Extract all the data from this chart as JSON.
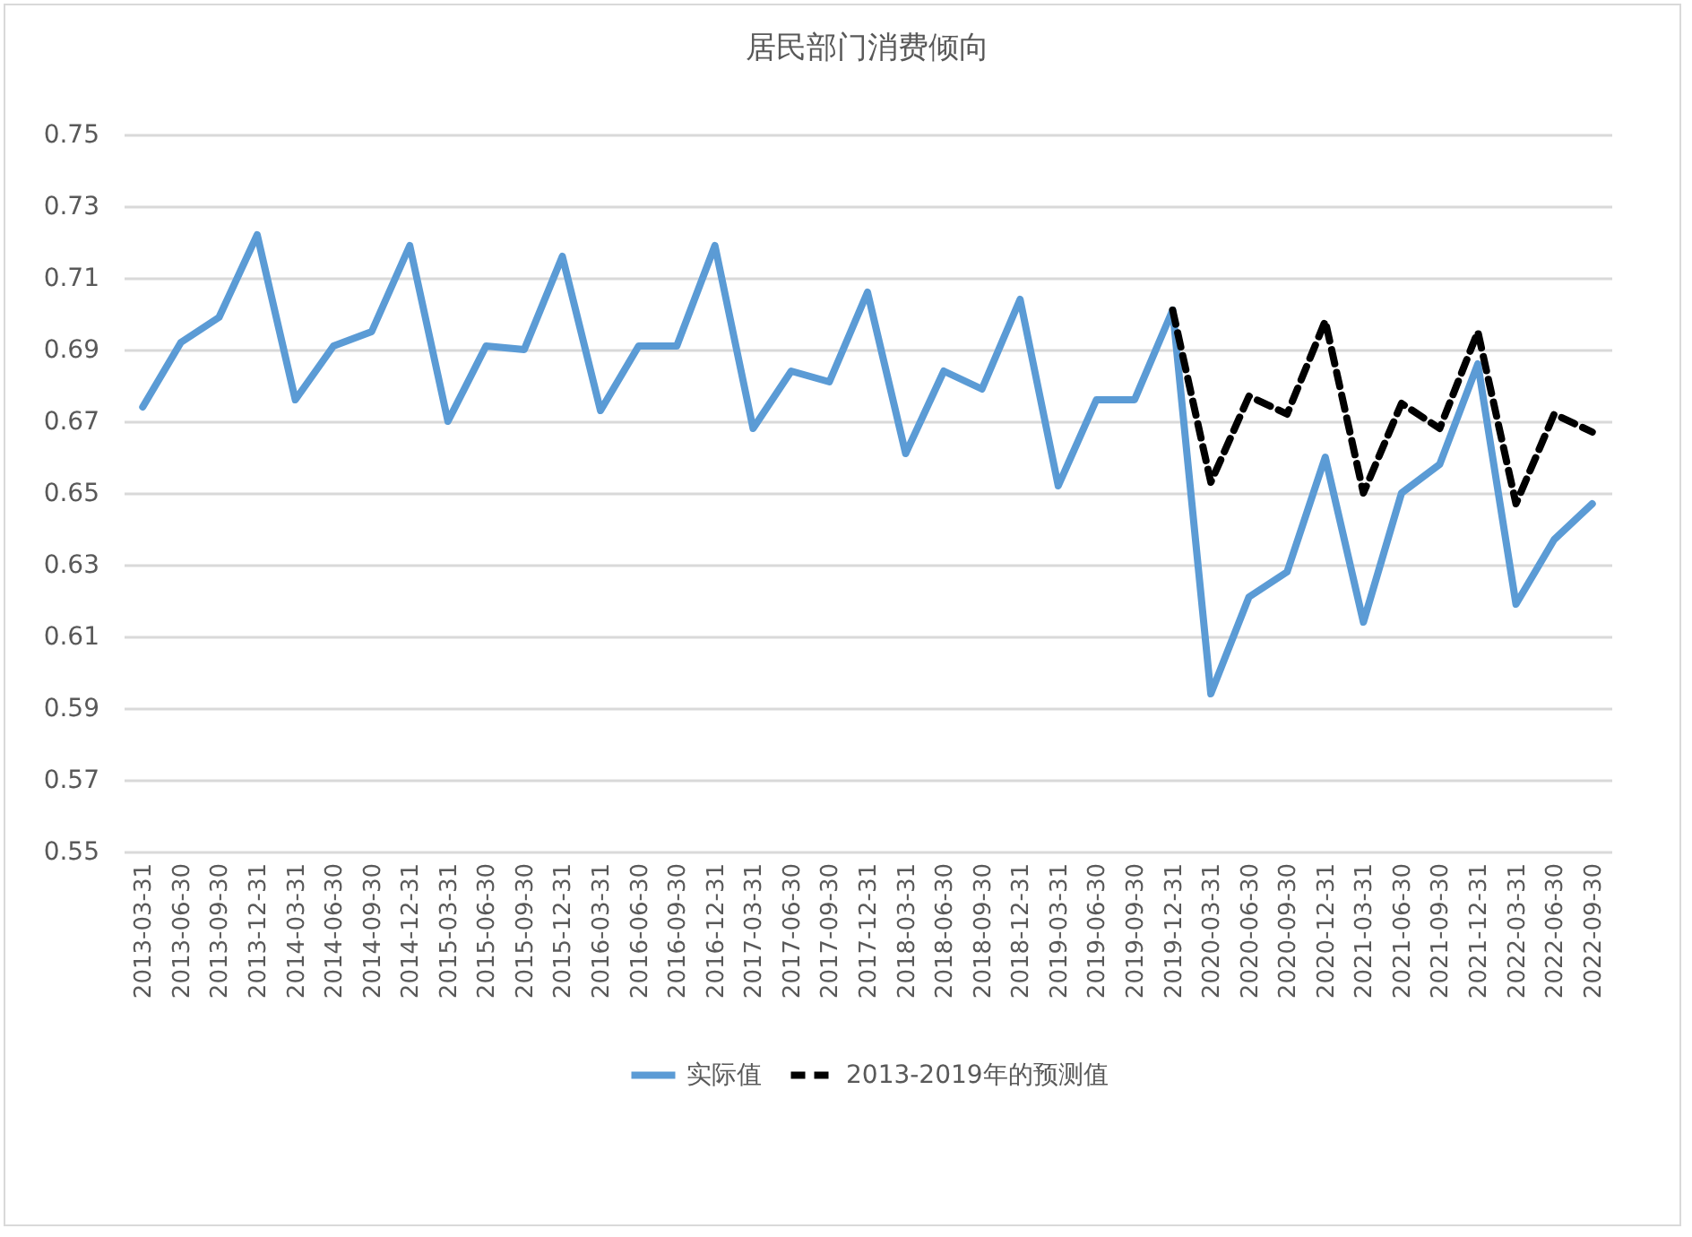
{
  "chart_data": {
    "type": "line",
    "title": "居民部门消费倾向",
    "categories": [
      "2013-03-31",
      "2013-06-30",
      "2013-09-30",
      "2013-12-31",
      "2014-03-31",
      "2014-06-30",
      "2014-09-30",
      "2014-12-31",
      "2015-03-31",
      "2015-06-30",
      "2015-09-30",
      "2015-12-31",
      "2016-03-31",
      "2016-06-30",
      "2016-09-30",
      "2016-12-31",
      "2017-03-31",
      "2017-06-30",
      "2017-09-30",
      "2017-12-31",
      "2018-03-31",
      "2018-06-30",
      "2018-09-30",
      "2018-12-31",
      "2019-03-31",
      "2019-06-30",
      "2019-09-30",
      "2019-12-31",
      "2020-03-31",
      "2020-06-30",
      "2020-09-30",
      "2020-12-31",
      "2021-03-31",
      "2021-06-30",
      "2021-09-30",
      "2021-12-31",
      "2022-03-31",
      "2022-06-30",
      "2022-09-30"
    ],
    "series": [
      {
        "name": "实际值",
        "color": "#5b9bd5",
        "line_style": "solid",
        "values": [
          0.674,
          0.692,
          0.699,
          0.722,
          0.676,
          0.691,
          0.695,
          0.719,
          0.67,
          0.691,
          0.69,
          0.716,
          0.673,
          0.691,
          0.691,
          0.719,
          0.668,
          0.684,
          0.681,
          0.706,
          0.661,
          0.684,
          0.679,
          0.704,
          0.652,
          0.676,
          0.676,
          0.701,
          0.594,
          0.621,
          0.628,
          0.66,
          0.614,
          0.65,
          0.658,
          0.686,
          0.619,
          0.637,
          0.647
        ]
      },
      {
        "name": "2013-2019年的预测值",
        "color": "#000000",
        "line_style": "dashed",
        "values": [
          null,
          null,
          null,
          null,
          null,
          null,
          null,
          null,
          null,
          null,
          null,
          null,
          null,
          null,
          null,
          null,
          null,
          null,
          null,
          null,
          null,
          null,
          null,
          null,
          null,
          null,
          null,
          0.701,
          0.653,
          0.677,
          0.672,
          0.698,
          0.65,
          0.675,
          0.668,
          0.695,
          0.647,
          0.672,
          0.667
        ]
      }
    ],
    "ylim": [
      0.55,
      0.75
    ],
    "yticks": [
      0.55,
      0.57,
      0.59,
      0.61,
      0.63,
      0.65,
      0.67,
      0.69,
      0.71,
      0.73,
      0.75
    ],
    "grid": "y",
    "legend": "bottom"
  }
}
